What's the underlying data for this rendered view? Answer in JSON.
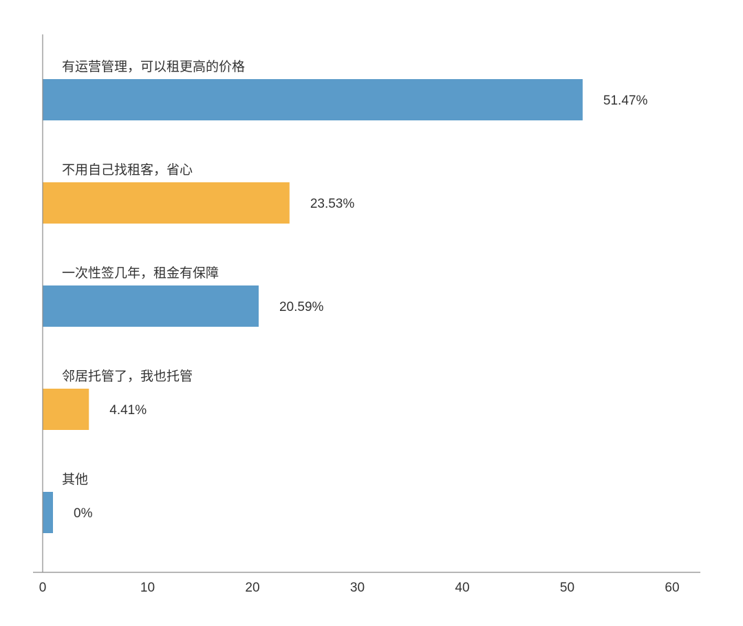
{
  "chart_data": {
    "type": "bar",
    "orientation": "horizontal",
    "categories": [
      "有运营管理，可以租更高的价格",
      "不用自己找租客，省心",
      "一次性签几年，租金有保障",
      "邻居托管了，我也托管",
      "其他"
    ],
    "values": [
      51.47,
      23.53,
      20.59,
      4.41,
      0
    ],
    "value_labels": [
      "51.47%",
      "23.53%",
      "20.59%",
      "4.41%",
      "0%"
    ],
    "bar_colors": [
      "#5b9bc9",
      "#f5b547",
      "#5b9bc9",
      "#f5b547",
      "#5b9bc9"
    ],
    "xlim": [
      0,
      60
    ],
    "xticks": [
      0,
      10,
      20,
      30,
      40,
      50,
      60
    ],
    "xtick_labels": [
      "0",
      "10",
      "20",
      "30",
      "40",
      "50",
      "60"
    ],
    "title": "",
    "xlabel": "",
    "ylabel": "",
    "grid": false,
    "legend": "none"
  }
}
